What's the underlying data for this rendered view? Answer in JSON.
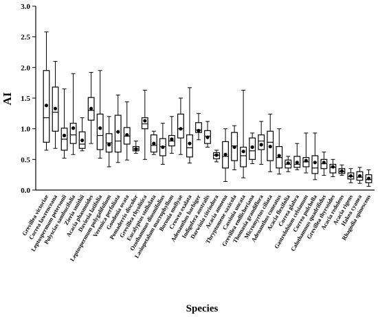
{
  "chart_data": {
    "type": "box",
    "title": "",
    "xlabel": "Species",
    "ylabel": "AI",
    "ylim": [
      0.0,
      3.0
    ],
    "yticks": [
      "0.0",
      "0.5",
      "1.0",
      "1.5",
      "2.0",
      "2.5",
      "3.0"
    ],
    "grid": false,
    "legend": "none",
    "categories": [
      "Grevillea victoriae",
      "Correa lawrenceana",
      "Leptospermum petersonii",
      "Polyscias sambucifolia",
      "Zieria smithii",
      "Acacia phasmoides",
      "Daviesia latifolia",
      "Leptospermum polygalifolium",
      "Veronica perfoliata",
      "Goodenia ovata",
      "Pomaderris discolor",
      "Grevillea rhyolitica",
      "Eucalyptus stellulata",
      "Ozothamnus diosmifolius",
      "Lasiopetalum macrophyllum",
      "Boronia mollyae",
      "Crowea exalata",
      "Adenanthos barbiger",
      "Indigofera australis",
      "Darwinia citriodora",
      "Acacia amoena",
      "Thryptomene saxicola",
      "Cassinia uncata",
      "Grevillea endlicheriana",
      "Thomasia grandiflora",
      "Micromyrtus ciliata",
      "Adenanthos cuneatus",
      "Acacia flexifolia",
      "Correa glabra",
      "Gastrolobium celsianum",
      "Correa pulchella",
      "Calothamnus quadrifidus",
      "Grevillea thyrsoides",
      "Acacia redolens",
      "Acacia rigens",
      "Hakea cyanea",
      "Rhagodia spinescens"
    ],
    "series": [
      {
        "stats": [
          {
            "min": 0.65,
            "q1": 0.78,
            "median": 1.18,
            "q3": 1.95,
            "max": 2.58,
            "mean": 1.38
          },
          {
            "min": 0.68,
            "q1": 0.96,
            "median": 1.27,
            "q3": 1.68,
            "max": 2.1,
            "mean": 1.33
          },
          {
            "min": 0.52,
            "q1": 0.65,
            "median": 0.83,
            "q3": 1.01,
            "max": 1.65,
            "mean": 0.89
          },
          {
            "min": 0.58,
            "q1": 0.76,
            "median": 0.9,
            "q3": 1.09,
            "max": 1.9,
            "mean": 1.01
          },
          {
            "min": 0.64,
            "q1": 0.68,
            "median": 0.75,
            "q3": 0.95,
            "max": 1.18,
            "mean": 0.81
          },
          {
            "min": 0.76,
            "q1": 1.14,
            "median": 1.3,
            "q3": 1.51,
            "max": 1.92,
            "mean": 1.33
          },
          {
            "min": 0.52,
            "q1": 0.66,
            "median": 0.89,
            "q3": 1.24,
            "max": 1.95,
            "mean": 1.01
          },
          {
            "min": 0.38,
            "q1": 0.62,
            "median": 0.77,
            "q3": 0.92,
            "max": 1.2,
            "mean": 0.74
          },
          {
            "min": 0.45,
            "q1": 0.62,
            "median": 0.8,
            "q3": 1.22,
            "max": 1.55,
            "mean": 0.95
          },
          {
            "min": 0.49,
            "q1": 0.75,
            "median": 0.88,
            "q3": 1.02,
            "max": 1.44,
            "mean": 0.9
          },
          {
            "min": 0.6,
            "q1": 0.64,
            "median": 0.67,
            "q3": 0.71,
            "max": 0.8,
            "mean": 0.67
          },
          {
            "min": 0.5,
            "q1": 1.0,
            "median": 1.08,
            "q3": 1.18,
            "max": 1.63,
            "mean": 1.13
          },
          {
            "min": 0.58,
            "q1": 0.62,
            "median": 0.73,
            "q3": 0.9,
            "max": 0.96,
            "mean": 0.76
          },
          {
            "min": 0.42,
            "q1": 0.56,
            "median": 0.71,
            "q3": 0.84,
            "max": 1.09,
            "mean": 0.7
          },
          {
            "min": 0.6,
            "q1": 0.72,
            "median": 0.8,
            "q3": 0.89,
            "max": 1.2,
            "mean": 0.83
          },
          {
            "min": 0.58,
            "q1": 0.85,
            "median": 1.0,
            "q3": 1.24,
            "max": 1.5,
            "mean": 1.0
          },
          {
            "min": 0.44,
            "q1": 0.54,
            "median": 0.69,
            "q3": 0.9,
            "max": 1.67,
            "mean": 0.76
          },
          {
            "min": 0.82,
            "q1": 0.94,
            "median": 0.98,
            "q3": 1.1,
            "max": 1.25,
            "mean": 0.97
          },
          {
            "min": 0.7,
            "q1": 0.76,
            "median": 0.88,
            "q3": 0.97,
            "max": 1.12,
            "mean": 0.86
          },
          {
            "min": 0.46,
            "q1": 0.51,
            "median": 0.57,
            "q3": 0.61,
            "max": 0.65,
            "mean": 0.57
          },
          {
            "min": 0.14,
            "q1": 0.36,
            "median": 0.55,
            "q3": 0.79,
            "max": 1.0,
            "mean": 0.58
          },
          {
            "min": 0.33,
            "q1": 0.48,
            "median": 0.72,
            "q3": 0.94,
            "max": 1.05,
            "mean": 0.7
          },
          {
            "min": 0.2,
            "q1": 0.38,
            "median": 0.56,
            "q3": 0.7,
            "max": 1.63,
            "mean": 0.63
          },
          {
            "min": 0.43,
            "q1": 0.5,
            "median": 0.64,
            "q3": 0.85,
            "max": 0.93,
            "mean": 0.7
          },
          {
            "min": 0.42,
            "q1": 0.66,
            "median": 0.8,
            "q3": 0.9,
            "max": 1.12,
            "mean": 0.74
          },
          {
            "min": 0.3,
            "q1": 0.48,
            "median": 0.78,
            "q3": 0.96,
            "max": 1.24,
            "mean": 0.71
          },
          {
            "min": 0.26,
            "q1": 0.36,
            "median": 0.53,
            "q3": 0.71,
            "max": 1.0,
            "mean": 0.56
          },
          {
            "min": 0.3,
            "q1": 0.36,
            "median": 0.42,
            "q3": 0.49,
            "max": 0.55,
            "mean": 0.44
          },
          {
            "min": 0.33,
            "q1": 0.37,
            "median": 0.42,
            "q3": 0.55,
            "max": 0.76,
            "mean": 0.45
          },
          {
            "min": 0.28,
            "q1": 0.38,
            "median": 0.46,
            "q3": 0.53,
            "max": 0.93,
            "mean": 0.48
          },
          {
            "min": 0.17,
            "q1": 0.27,
            "median": 0.36,
            "q3": 0.56,
            "max": 0.93,
            "mean": 0.45
          },
          {
            "min": 0.24,
            "q1": 0.35,
            "median": 0.43,
            "q3": 0.5,
            "max": 0.62,
            "mean": 0.45
          },
          {
            "min": 0.22,
            "q1": 0.28,
            "median": 0.37,
            "q3": 0.42,
            "max": 0.5,
            "mean": 0.38
          },
          {
            "min": 0.24,
            "q1": 0.27,
            "median": 0.3,
            "q3": 0.35,
            "max": 0.41,
            "mean": 0.31
          },
          {
            "min": 0.12,
            "q1": 0.18,
            "median": 0.22,
            "q3": 0.28,
            "max": 0.35,
            "mean": 0.23
          },
          {
            "min": 0.11,
            "q1": 0.16,
            "median": 0.21,
            "q3": 0.3,
            "max": 0.37,
            "mean": 0.23
          },
          {
            "min": 0.06,
            "q1": 0.12,
            "median": 0.17,
            "q3": 0.25,
            "max": 0.33,
            "mean": 0.19
          }
        ]
      }
    ]
  }
}
